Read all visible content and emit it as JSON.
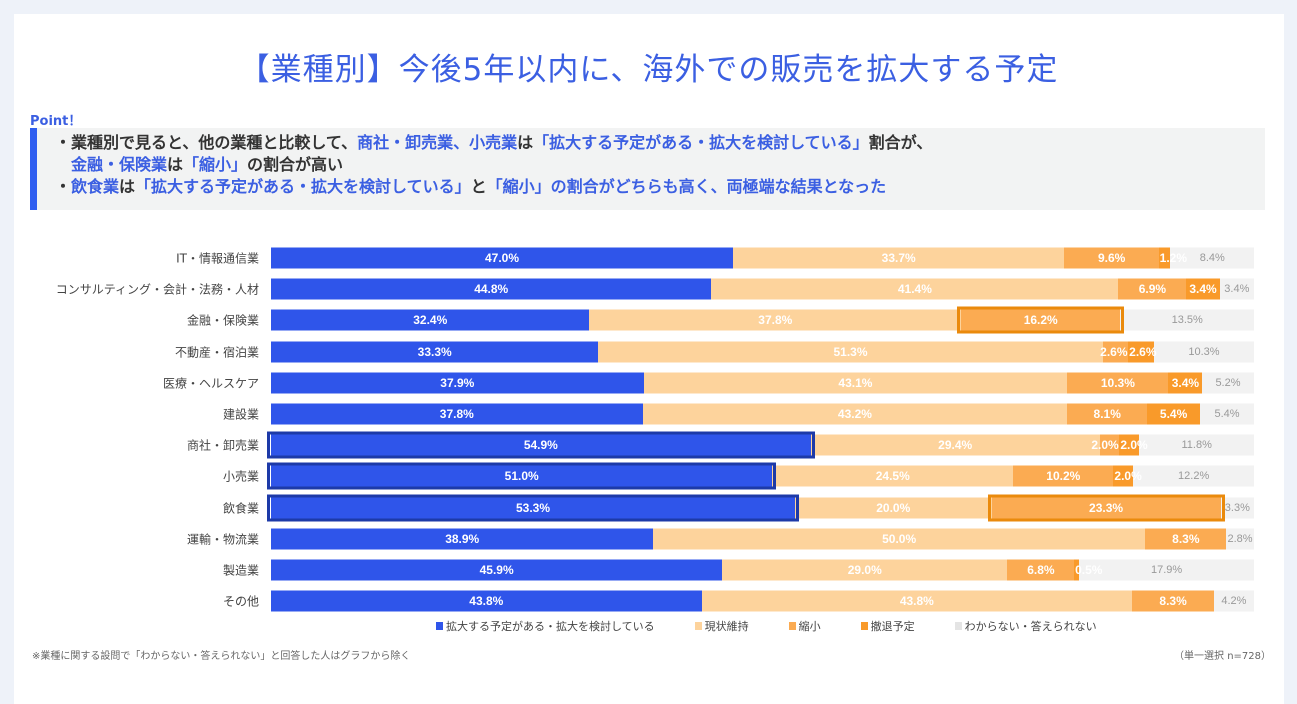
{
  "title": "【業種別】今後5年以内に、海外での販売を拡大する予定",
  "point": {
    "label": "Point！",
    "lines": [
      [
        {
          "t": "・業種別で見ると、他の業種と比較して、",
          "hl": false
        },
        {
          "t": "商社・卸売業、小売業",
          "hl": true
        },
        {
          "t": "は",
          "hl": false
        },
        {
          "t": "「拡大する予定がある・拡大を検討している」",
          "hl": true
        },
        {
          "t": "割合が、",
          "hl": false
        }
      ],
      [
        {
          "t": "金融・保険業",
          "hl": true
        },
        {
          "t": "は",
          "hl": false
        },
        {
          "t": "「縮小」",
          "hl": true
        },
        {
          "t": "の割合が高い",
          "hl": false
        }
      ],
      [
        {
          "t": "・",
          "hl": false
        },
        {
          "t": "飲食業",
          "hl": true
        },
        {
          "t": "は",
          "hl": false
        },
        {
          "t": "「拡大する予定がある・拡大を検討している」",
          "hl": true
        },
        {
          "t": "と",
          "hl": false
        },
        {
          "t": "「縮小」",
          "hl": true
        },
        {
          "t": "の割合がどちらも高く、両極端な結果となった",
          "hl": true
        }
      ]
    ]
  },
  "chart_data": {
    "type": "bar",
    "stacked": true,
    "orientation": "horizontal",
    "xlim": [
      0,
      100
    ],
    "categories": [
      "IT・情報通信業",
      "コンサルティング・会計・法務・人材",
      "金融・保険業",
      "不動産・宿泊業",
      "医療・ヘルスケア",
      "建設業",
      "商社・卸売業",
      "小売業",
      "飲食業",
      "運輸・物流業",
      "製造業",
      "その他"
    ],
    "series": [
      {
        "name": "拡大する予定がある・拡大を検討している",
        "color": "#2f55ea",
        "values": [
          47.0,
          44.8,
          32.4,
          33.3,
          37.9,
          37.8,
          54.9,
          51.0,
          53.3,
          38.9,
          45.9,
          43.8
        ]
      },
      {
        "name": "現状維持",
        "color": "#fdd39c",
        "values": [
          33.7,
          41.4,
          37.8,
          51.3,
          43.1,
          43.2,
          29.4,
          24.5,
          20.0,
          50.0,
          29.0,
          43.8
        ]
      },
      {
        "name": "縮小",
        "color": "#fbab52",
        "values": [
          9.6,
          6.9,
          16.2,
          2.6,
          10.3,
          8.1,
          2.0,
          10.2,
          23.3,
          8.3,
          6.8,
          8.3
        ]
      },
      {
        "name": "撤退予定",
        "color": "#f99a2a",
        "values": [
          1.2,
          3.4,
          0,
          2.6,
          3.4,
          5.4,
          2.0,
          2.0,
          0,
          0,
          0.5,
          0
        ]
      },
      {
        "name": "わからない・答えられない",
        "color": "#f2f2f2",
        "values": [
          8.4,
          3.4,
          13.5,
          10.3,
          5.2,
          5.4,
          11.8,
          12.2,
          3.3,
          2.8,
          17.9,
          4.2
        ]
      }
    ],
    "highlights": [
      {
        "category": "商社・卸売業",
        "series": 0,
        "color": "#1d3aa8"
      },
      {
        "category": "小売業",
        "series": 0,
        "color": "#1d3aa8"
      },
      {
        "category": "飲食業",
        "series": 0,
        "color": "#1d3aa8"
      },
      {
        "category": "金融・保険業",
        "series": 2,
        "color": "#ea8a0c"
      },
      {
        "category": "飲食業",
        "series": 2,
        "color": "#ea8a0c"
      }
    ],
    "legend": "bottom"
  },
  "footnote": "※業種に関する設問で「わからない・答えられない」と回答した人はグラフから除く",
  "sample": "（単一選択 n=728）"
}
